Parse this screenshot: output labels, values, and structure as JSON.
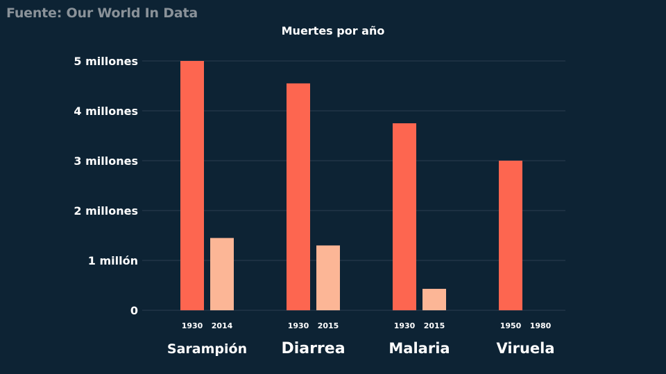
{
  "source": "Fuente: Our World In Data",
  "chart_data": {
    "type": "bar",
    "title": "Muertes por año",
    "xlabel": "",
    "ylabel": "",
    "ylim": [
      0,
      5000000
    ],
    "grid": true,
    "y_ticks": [
      {
        "value": 0,
        "label": "0"
      },
      {
        "value": 1000000,
        "label": "1 millón"
      },
      {
        "value": 2000000,
        "label": "2 millones"
      },
      {
        "value": 3000000,
        "label": "3 millones"
      },
      {
        "value": 4000000,
        "label": "4 millones"
      },
      {
        "value": 5000000,
        "label": "5 millones"
      }
    ],
    "groups": [
      {
        "name": "Sarampión",
        "bars": [
          {
            "year": "1930",
            "value": 5000000
          },
          {
            "year": "2014",
            "value": 1450000
          }
        ]
      },
      {
        "name": "Diarrea",
        "bars": [
          {
            "year": "1930",
            "value": 4550000
          },
          {
            "year": "2015",
            "value": 1300000
          }
        ]
      },
      {
        "name": "Malaria",
        "bars": [
          {
            "year": "1930",
            "value": 3750000
          },
          {
            "year": "2015",
            "value": 430000
          }
        ]
      },
      {
        "name": "Viruela",
        "bars": [
          {
            "year": "1950",
            "value": 3000000
          },
          {
            "year": "1980",
            "value": 0
          }
        ]
      }
    ],
    "colors": {
      "earlier": "#fd6650",
      "later": "#fcb696"
    }
  }
}
